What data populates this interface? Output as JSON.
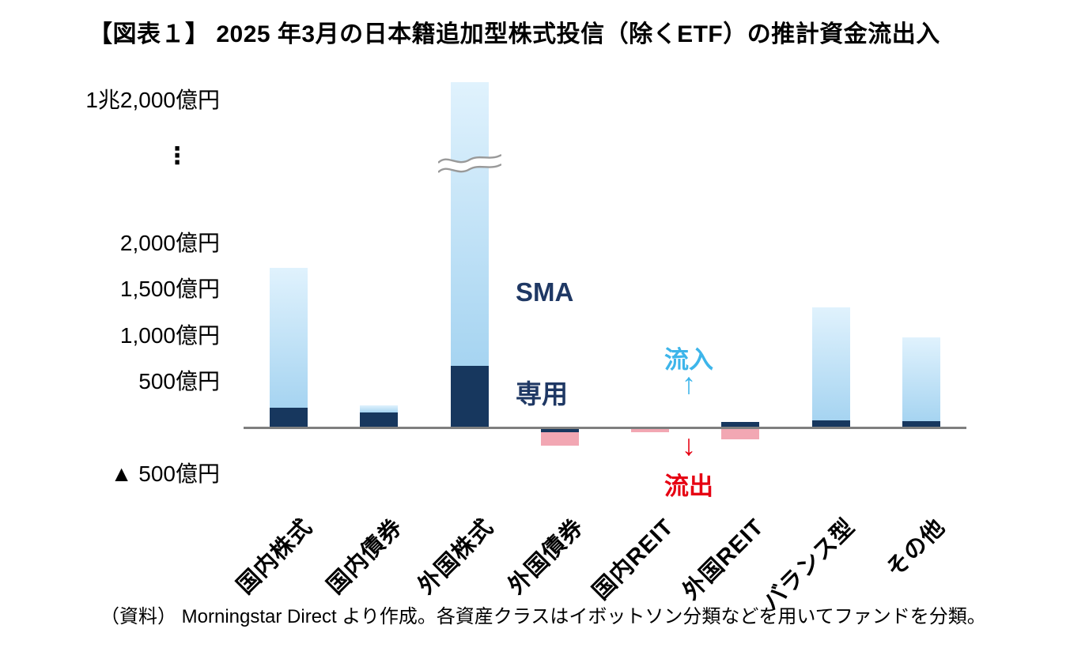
{
  "source_note": "（資料） Morningstar Direct より作成。各資産クラスはイボットソン分類などを用いてファンドを分類。",
  "chart_data": {
    "type": "bar",
    "stacked": true,
    "grid": false,
    "legend_position": "none",
    "title": "【図表１】 2025 年3月の日本籍追加型株式投信（除くETF）の推計資金流出入",
    "unit": "億円",
    "categories": [
      "国内株式",
      "国内債券",
      "外国株式",
      "外国債券",
      "国内REIT",
      "外国REIT",
      "バランス型",
      "その他"
    ],
    "series": [
      {
        "key": "sma_dedicated",
        "label": "SMA専用",
        "color": "#17375e",
        "values": [
          220,
          170,
          675,
          -50,
          -10,
          60,
          85,
          75
        ]
      },
      {
        "key": "other_flows",
        "label": "",
        "color_inflow": "#bfe2f8",
        "color_outflow": "#f2a7b3",
        "values": [
          1510,
          70,
          11625,
          -140,
          -40,
          -120,
          1215,
          900
        ]
      }
    ],
    "totals": [
      1730,
      240,
      12300,
      -190,
      -50,
      -60,
      1300,
      975
    ],
    "yaxis": {
      "ylim": [
        -500,
        12300
      ],
      "axis_break": true,
      "axis_break_on": "外国株式",
      "break_ellipsis": "⋮",
      "zero_line": true,
      "ticks": [
        {
          "label": "1兆2,000億円",
          "value": 12000,
          "above_break": true
        },
        {
          "label": "2,000億円",
          "value": 2000
        },
        {
          "label": "1,500億円",
          "value": 1500
        },
        {
          "label": "1,000億円",
          "value": 1000
        },
        {
          "label": "500億円",
          "value": 500
        },
        {
          "label": "▲ 500億円",
          "value": -500
        }
      ]
    },
    "annotations": {
      "sma_line1": "SMA",
      "sma_line2": "専用",
      "inflow_label": "流入",
      "inflow_arrow": "↑",
      "outflow_arrow": "↓",
      "outflow_label": "流出",
      "inflow_color": "#3db5ea",
      "outflow_color": "#e60012"
    },
    "colors": {
      "sma_bar": "#17375e",
      "inflow_bar_top": "#e0f2fd",
      "inflow_bar_bottom": "#a6d4f1",
      "outflow_bar": "#f2a7b3",
      "axis_line": "#7f7f7f"
    }
  }
}
